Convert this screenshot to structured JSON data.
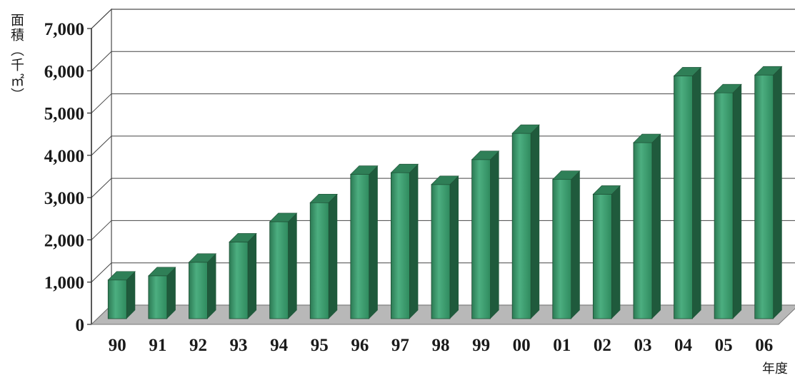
{
  "chart_data": {
    "type": "bar",
    "title": "",
    "ylabel": "面積（千㎡）",
    "xlabel": "年度",
    "categories": [
      "90",
      "91",
      "92",
      "93",
      "94",
      "95",
      "96",
      "97",
      "98",
      "99",
      "00",
      "01",
      "02",
      "03",
      "04",
      "05",
      "06"
    ],
    "values": [
      1050,
      1150,
      1470,
      1950,
      2430,
      2880,
      3550,
      3590,
      3310,
      3900,
      4520,
      3430,
      3080,
      4300,
      5880,
      5480,
      5900
    ],
    "ylim": [
      0,
      7000
    ],
    "yticks": [
      "0",
      "1,000",
      "2,000",
      "3,000",
      "4,000",
      "5,000",
      "6,000",
      "7,000"
    ],
    "grid": true,
    "colors": {
      "bar_front": "#3a9a6c",
      "bar_side": "#1f5a3c",
      "bar_top": "#2f7f57",
      "floor": "#b8b8b8"
    }
  }
}
